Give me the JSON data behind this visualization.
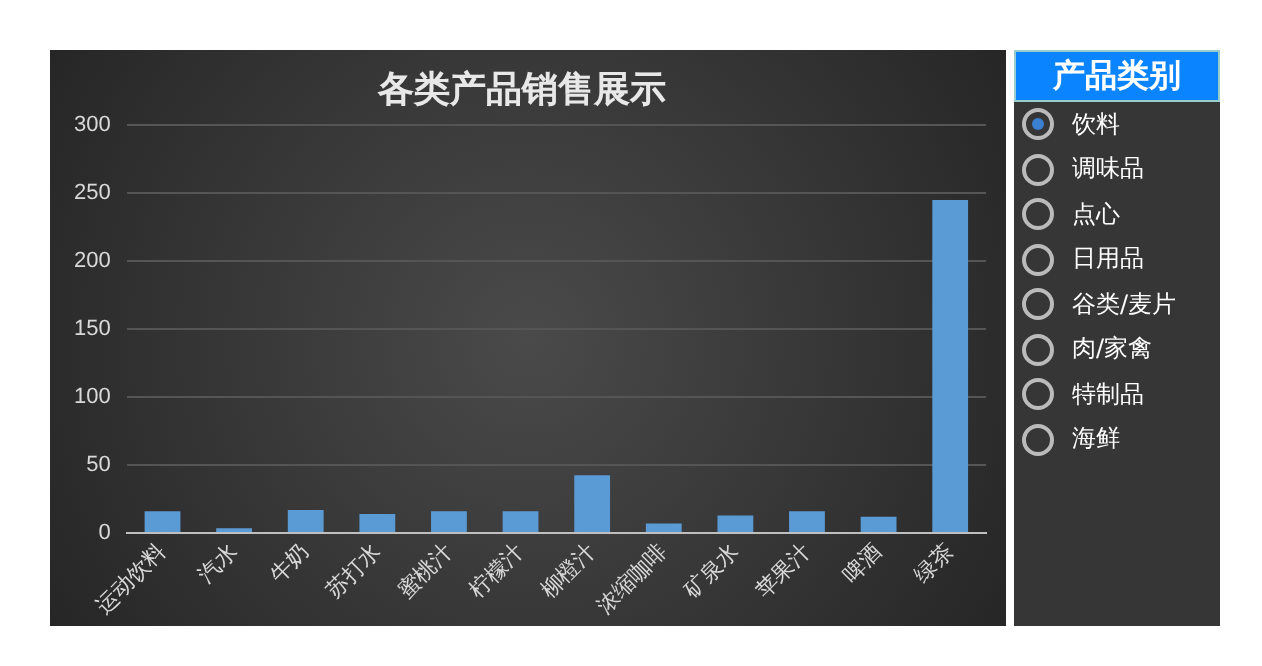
{
  "chart_data": [
    {
      "type": "bar",
      "title": "各类产品销售展示",
      "categories": [
        "运动饮料",
        "汽水",
        "牛奶",
        "苏打水",
        "蜜桃汁",
        "柠檬汁",
        "柳橙汁",
        "浓缩咖啡",
        "矿泉水",
        "苹果汁",
        "啤酒",
        "绿茶"
      ],
      "values": [
        16,
        3.5,
        17,
        14,
        16,
        16,
        42.5,
        7,
        13,
        16,
        12,
        245
      ],
      "color": "#5b9bd5",
      "ylim": [
        0,
        300
      ],
      "yticks": [
        0,
        50,
        100,
        150,
        200,
        250,
        300
      ],
      "grid": "y",
      "legend": false
    },
    {
      "type": "other",
      "title": "产品类别",
      "annotations": [
        "饮料",
        "调味品",
        "点心",
        "日用品",
        "谷类/麦片",
        "肉/家禽",
        "特制品",
        "海鲜"
      ]
    }
  ]
}
